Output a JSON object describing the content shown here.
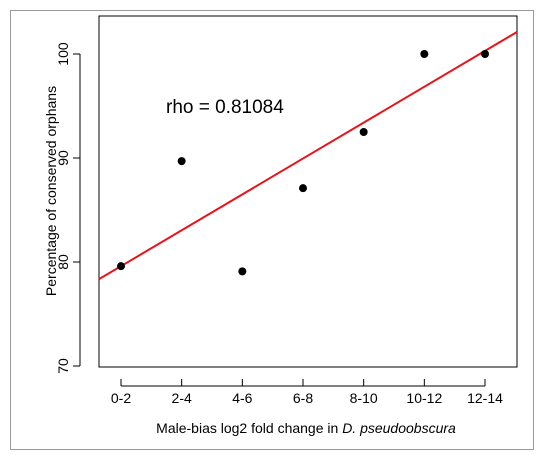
{
  "chart_data": {
    "type": "scatter",
    "categories": [
      "0-2",
      "2-4",
      "4-6",
      "6-8",
      "8-10",
      "10-12",
      "12-14"
    ],
    "values": [
      79.6,
      89.7,
      79.1,
      87.1,
      92.5,
      100,
      100
    ],
    "ylabel": "Percentage of conserved orphans",
    "xlabel_prefix": "Male-bias log2 fold change in ",
    "xlabel_italic": "D. pseudoobscura",
    "ylim": [
      70,
      100
    ],
    "yticks": [
      70,
      80,
      90,
      100
    ],
    "grid": false,
    "annotation": "rho = 0.81084",
    "trend_line": {
      "color": "#e8141a",
      "intercept": 79.6,
      "slope_per_category": 3.45
    },
    "point_color": "#000000"
  }
}
